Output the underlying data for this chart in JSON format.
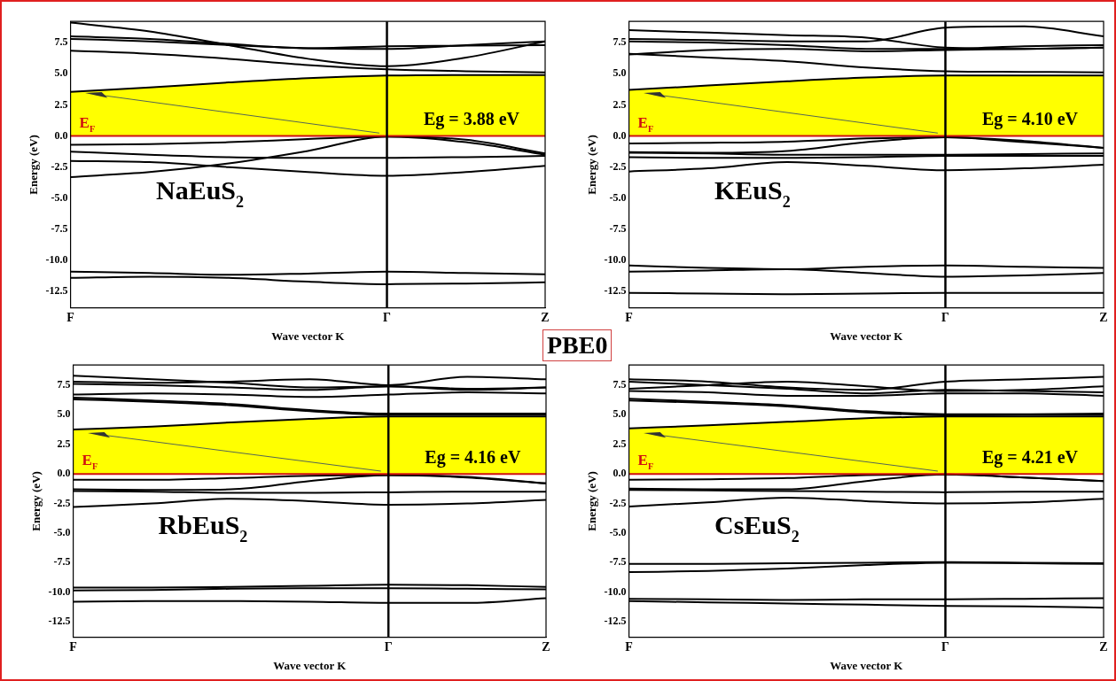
{
  "chart_data": [
    {
      "type": "line",
      "xlabel": "Wave vector K",
      "ylabel": "Energy (eV)",
      "annotations": [
        "Eg = 3.88 eV",
        "NaEuS$_{2}$"
      ],
      "categories": [
        "F",
        null,
        null,
        null,
        "Γ",
        null,
        "Z"
      ],
      "ylim": [
        -13.8,
        9.2
      ],
      "yticks": [
        -12.5,
        {
          "value": -10,
          "label": "-10.0"
        },
        -7.5,
        {
          "value": -5,
          "label": "-5.0"
        },
        -2.5,
        {
          "value": 0,
          "label": "0.0"
        },
        2.5,
        {
          "value": 5,
          "label": "5.0"
        },
        7.5
      ],
      "ref_lines": [
        {
          "axis": "y",
          "value": 0,
          "label": "E$_{F}$",
          "color": "#d01010"
        },
        {
          "axis": "x",
          "value": "Γ",
          "color": "#000000"
        }
      ],
      "series": [
        {
          "color": "#000000",
          "values": [
            -0.7,
            -0.65,
            -0.5,
            -0.25,
            -0.05,
            -0.5,
            -1.5
          ]
        },
        {
          "color": "#000000",
          "values": [
            -1.25,
            -1.5,
            -1.7,
            -1.75,
            -1.75,
            -1.7,
            -1.6
          ]
        },
        {
          "color": "#000000",
          "values": [
            -3.3,
            -2.9,
            -2.2,
            -1.2,
            -0.05,
            -0.3,
            -1.4
          ]
        },
        {
          "color": "#000000",
          "values": [
            -2,
            -2.1,
            -2.5,
            -2.9,
            -3.2,
            -2.9,
            -2.4
          ]
        },
        {
          "color": "#000000",
          "values": [
            -10.9,
            -11,
            -11.15,
            -11.05,
            -10.9,
            -11,
            -11.1
          ]
        },
        {
          "color": "#000000",
          "values": [
            -11.4,
            -11.3,
            -11.4,
            -11.7,
            -11.9,
            -11.85,
            -11.75
          ]
        },
        {
          "color": "#000000",
          "values": [
            9.1,
            8.4,
            7.3,
            6.2,
            5.6,
            6.3,
            7.6
          ]
        },
        {
          "color": "#000000",
          "values": [
            8,
            7.8,
            7.4,
            7.05,
            7.2,
            7.25,
            7.3
          ]
        },
        {
          "color": "#000000",
          "values": [
            7.8,
            7.6,
            7.3,
            7.05,
            7,
            7.3,
            7.6
          ]
        },
        {
          "color": "#000000",
          "values": [
            6.85,
            6.6,
            6.2,
            5.7,
            5.35,
            5.2,
            5.1
          ]
        },
        {
          "type": "area",
          "color": "#ffff00",
          "values": [
            3.55,
            3.9,
            4.3,
            4.65,
            4.85,
            4.9,
            4.9
          ]
        }
      ]
    },
    {
      "type": "line",
      "xlabel": "Wave vector K",
      "ylabel": "Energy (eV)",
      "annotations": [
        "Eg = 4.10 eV",
        "KEuS$_{2}$"
      ],
      "categories": [
        "F",
        null,
        null,
        null,
        "Γ",
        null,
        "Z"
      ],
      "ylim": [
        -13.8,
        9.2
      ],
      "yticks": [
        -12.5,
        {
          "value": -10,
          "label": "-10.0"
        },
        -7.5,
        {
          "value": -5,
          "label": "-5.0"
        },
        -2.5,
        {
          "value": 0,
          "label": "0.0"
        },
        2.5,
        {
          "value": 5,
          "label": "5.0"
        },
        7.5
      ],
      "ref_lines": [
        {
          "axis": "y",
          "value": 0,
          "label": "E$_{F}$",
          "color": "#d01010"
        },
        {
          "axis": "x",
          "value": "Γ",
          "color": "#000000"
        }
      ],
      "series": [
        {
          "color": "#000000",
          "values": [
            -0.6,
            -0.55,
            -0.45,
            -0.2,
            -0.1,
            -0.4,
            -0.95
          ]
        },
        {
          "color": "#000000",
          "values": [
            -1.35,
            -1.4,
            -1.5,
            -1.5,
            -1.5,
            -1.45,
            -1.4
          ]
        },
        {
          "color": "#000000",
          "values": [
            -1.3,
            -1.35,
            -1.2,
            -0.5,
            -0.1,
            -0.5,
            -0.95
          ]
        },
        {
          "color": "#000000",
          "values": [
            -1.7,
            -1.75,
            -1.75,
            -1.7,
            -1.6,
            -1.6,
            -1.6
          ]
        },
        {
          "color": "#000000",
          "values": [
            -2.85,
            -2.6,
            -2.1,
            -2.4,
            -2.75,
            -2.6,
            -2.3
          ]
        },
        {
          "color": "#000000",
          "values": [
            -10.4,
            -10.6,
            -10.7,
            -10.5,
            -10.4,
            -10.5,
            -10.6
          ]
        },
        {
          "color": "#000000",
          "values": [
            -10.9,
            -10.8,
            -10.7,
            -11,
            -11.3,
            -11.2,
            -11
          ]
        },
        {
          "color": "#000000",
          "values": [
            -12.6,
            -12.65,
            -12.7,
            -12.65,
            -12.6,
            -12.6,
            -12.6
          ]
        },
        {
          "color": "#000000",
          "values": [
            6.6,
            6.3,
            6,
            5.5,
            5.2,
            5.15,
            5.1
          ]
        },
        {
          "color": "#000000",
          "values": [
            6.55,
            6.9,
            7,
            6.8,
            6.9,
            7,
            7.1
          ]
        },
        {
          "color": "#000000",
          "values": [
            7.6,
            7.5,
            7.3,
            7,
            7,
            7.2,
            7.3
          ]
        },
        {
          "color": "#000000",
          "values": [
            7.8,
            7.7,
            7.6,
            7.6,
            8.7,
            8.8,
            8
          ]
        },
        {
          "color": "#000000",
          "values": [
            8.5,
            8.3,
            8.1,
            7.9,
            7.1,
            7,
            7.1
          ]
        },
        {
          "type": "area",
          "color": "#ffff00",
          "values": [
            3.7,
            4.05,
            4.4,
            4.7,
            4.85,
            4.85,
            4.85
          ]
        }
      ]
    },
    {
      "type": "line",
      "xlabel": "Wave vector K",
      "ylabel": "Energy (eV)",
      "annotations": [
        "Eg = 4.16 eV",
        "RbEuS$_{2}$"
      ],
      "categories": [
        "F",
        null,
        null,
        null,
        "Γ",
        null,
        "Z"
      ],
      "ylim": [
        -13.8,
        9.2
      ],
      "yticks": [
        -12.5,
        {
          "value": -10,
          "label": "-10.0"
        },
        -7.5,
        {
          "value": -5,
          "label": "-5.0"
        },
        -2.5,
        {
          "value": 0,
          "label": "0.0"
        },
        2.5,
        {
          "value": 5,
          "label": "5.0"
        },
        7.5
      ],
      "ref_lines": [
        {
          "axis": "y",
          "value": 0,
          "label": "E$_{F}$",
          "color": "#d01010"
        },
        {
          "axis": "x",
          "value": "Γ",
          "color": "#000000"
        }
      ],
      "series": [
        {
          "color": "#000000",
          "values": [
            -0.5,
            -0.5,
            -0.35,
            -0.15,
            -0.1,
            -0.25,
            -0.8
          ]
        },
        {
          "color": "#000000",
          "values": [
            -1.3,
            -1.35,
            -1.3,
            -0.6,
            -0.1,
            -0.3,
            -0.8
          ]
        },
        {
          "color": "#000000",
          "values": [
            -1.45,
            -1.5,
            -1.6,
            -1.6,
            -1.55,
            -1.5,
            -1.5
          ]
        },
        {
          "color": "#000000",
          "values": [
            -2.8,
            -2.5,
            -2.1,
            -2.3,
            -2.6,
            -2.5,
            -2.2
          ]
        },
        {
          "color": "#000000",
          "values": [
            -9.6,
            -9.6,
            -9.55,
            -9.45,
            -9.35,
            -9.4,
            -9.55
          ]
        },
        {
          "color": "#000000",
          "values": [
            -9.85,
            -9.8,
            -9.7,
            -9.65,
            -9.65,
            -9.7,
            -9.75
          ]
        },
        {
          "color": "#000000",
          "values": [
            -10.8,
            -10.75,
            -10.75,
            -10.8,
            -10.9,
            -10.9,
            -10.5
          ]
        },
        {
          "color": "#000000",
          "values": [
            6.3,
            6.1,
            5.8,
            5.3,
            5,
            5,
            5
          ]
        },
        {
          "color": "#000000",
          "values": [
            6.45,
            6.2,
            5.9,
            5.4,
            5.1,
            5.1,
            5.1
          ]
        },
        {
          "color": "#000000",
          "values": [
            6.7,
            6.8,
            6.7,
            6.5,
            6.7,
            6.9,
            6.8
          ]
        },
        {
          "color": "#000000",
          "values": [
            7.6,
            7.5,
            7.3,
            7.1,
            7.4,
            7.1,
            7.3
          ]
        },
        {
          "color": "#000000",
          "values": [
            7.8,
            7.7,
            7.8,
            8,
            7.5,
            8.2,
            8
          ]
        },
        {
          "color": "#000000",
          "values": [
            8.3,
            8,
            7.7,
            7.3,
            7.4,
            7.2,
            7.3
          ]
        },
        {
          "type": "area",
          "color": "#ffff00",
          "values": [
            3.75,
            4,
            4.35,
            4.65,
            4.85,
            4.85,
            4.85
          ]
        }
      ]
    },
    {
      "type": "line",
      "xlabel": "Wave vector K",
      "ylabel": "Energy (eV)",
      "annotations": [
        "Eg = 4.21 eV",
        "CsEuS$_{2}$"
      ],
      "categories": [
        "F",
        null,
        null,
        null,
        "Γ",
        null,
        "Z"
      ],
      "ylim": [
        -13.8,
        9.2
      ],
      "yticks": [
        -12.5,
        {
          "value": -10,
          "label": "-10.0"
        },
        -7.5,
        {
          "value": -5,
          "label": "-5.0"
        },
        -2.5,
        {
          "value": 0,
          "label": "0.0"
        },
        2.5,
        {
          "value": 5,
          "label": "5.0"
        },
        7.5
      ],
      "ref_lines": [
        {
          "axis": "y",
          "value": 0,
          "label": "E$_{F}$",
          "color": "#d01010"
        },
        {
          "axis": "x",
          "value": "Γ",
          "color": "#000000"
        }
      ],
      "series": [
        {
          "color": "#000000",
          "values": [
            -0.5,
            -0.45,
            -0.35,
            -0.1,
            -0.05,
            -0.3,
            -0.6
          ]
        },
        {
          "color": "#000000",
          "values": [
            -1.25,
            -1.3,
            -1.3,
            -0.6,
            -0.05,
            -0.3,
            -0.6
          ]
        },
        {
          "color": "#000000",
          "values": [
            -1.35,
            -1.4,
            -1.45,
            -1.5,
            -1.55,
            -1.5,
            -1.5
          ]
        },
        {
          "color": "#000000",
          "values": [
            -2.75,
            -2.4,
            -2,
            -2.3,
            -2.5,
            -2.4,
            -2.1
          ]
        },
        {
          "color": "#000000",
          "values": [
            -7.6,
            -7.6,
            -7.55,
            -7.5,
            -7.45,
            -7.5,
            -7.55
          ]
        },
        {
          "color": "#000000",
          "values": [
            -8.3,
            -8.2,
            -8,
            -7.7,
            -7.5,
            -7.55,
            -7.6
          ]
        },
        {
          "color": "#000000",
          "values": [
            -10.55,
            -10.6,
            -10.65,
            -10.6,
            -10.6,
            -10.55,
            -10.5
          ]
        },
        {
          "color": "#000000",
          "values": [
            -10.75,
            -10.85,
            -10.95,
            -11.05,
            -11.15,
            -11.2,
            -11.3
          ]
        },
        {
          "color": "#000000",
          "values": [
            6.2,
            6,
            5.7,
            5.2,
            4.95,
            5,
            5
          ]
        },
        {
          "color": "#000000",
          "values": [
            6.35,
            6.1,
            5.8,
            5.3,
            5.05,
            5.05,
            5.1
          ]
        },
        {
          "color": "#000000",
          "values": [
            7,
            6.9,
            6.6,
            6.6,
            6.8,
            6.8,
            6.6
          ]
        },
        {
          "color": "#000000",
          "values": [
            7.2,
            7.5,
            7.8,
            7.4,
            7,
            7.1,
            7.4
          ]
        },
        {
          "color": "#000000",
          "values": [
            7.8,
            7.5,
            7.2,
            6.8,
            7.1,
            7,
            6.9
          ]
        },
        {
          "color": "#000000",
          "values": [
            8,
            7.8,
            7.3,
            7.1,
            7.8,
            8,
            8.2
          ]
        },
        {
          "type": "area",
          "color": "#ffff00",
          "values": [
            3.85,
            4.1,
            4.4,
            4.7,
            4.85,
            4.85,
            4.85
          ]
        }
      ]
    },
    {
      "type": "other",
      "title": "PBE0"
    }
  ]
}
